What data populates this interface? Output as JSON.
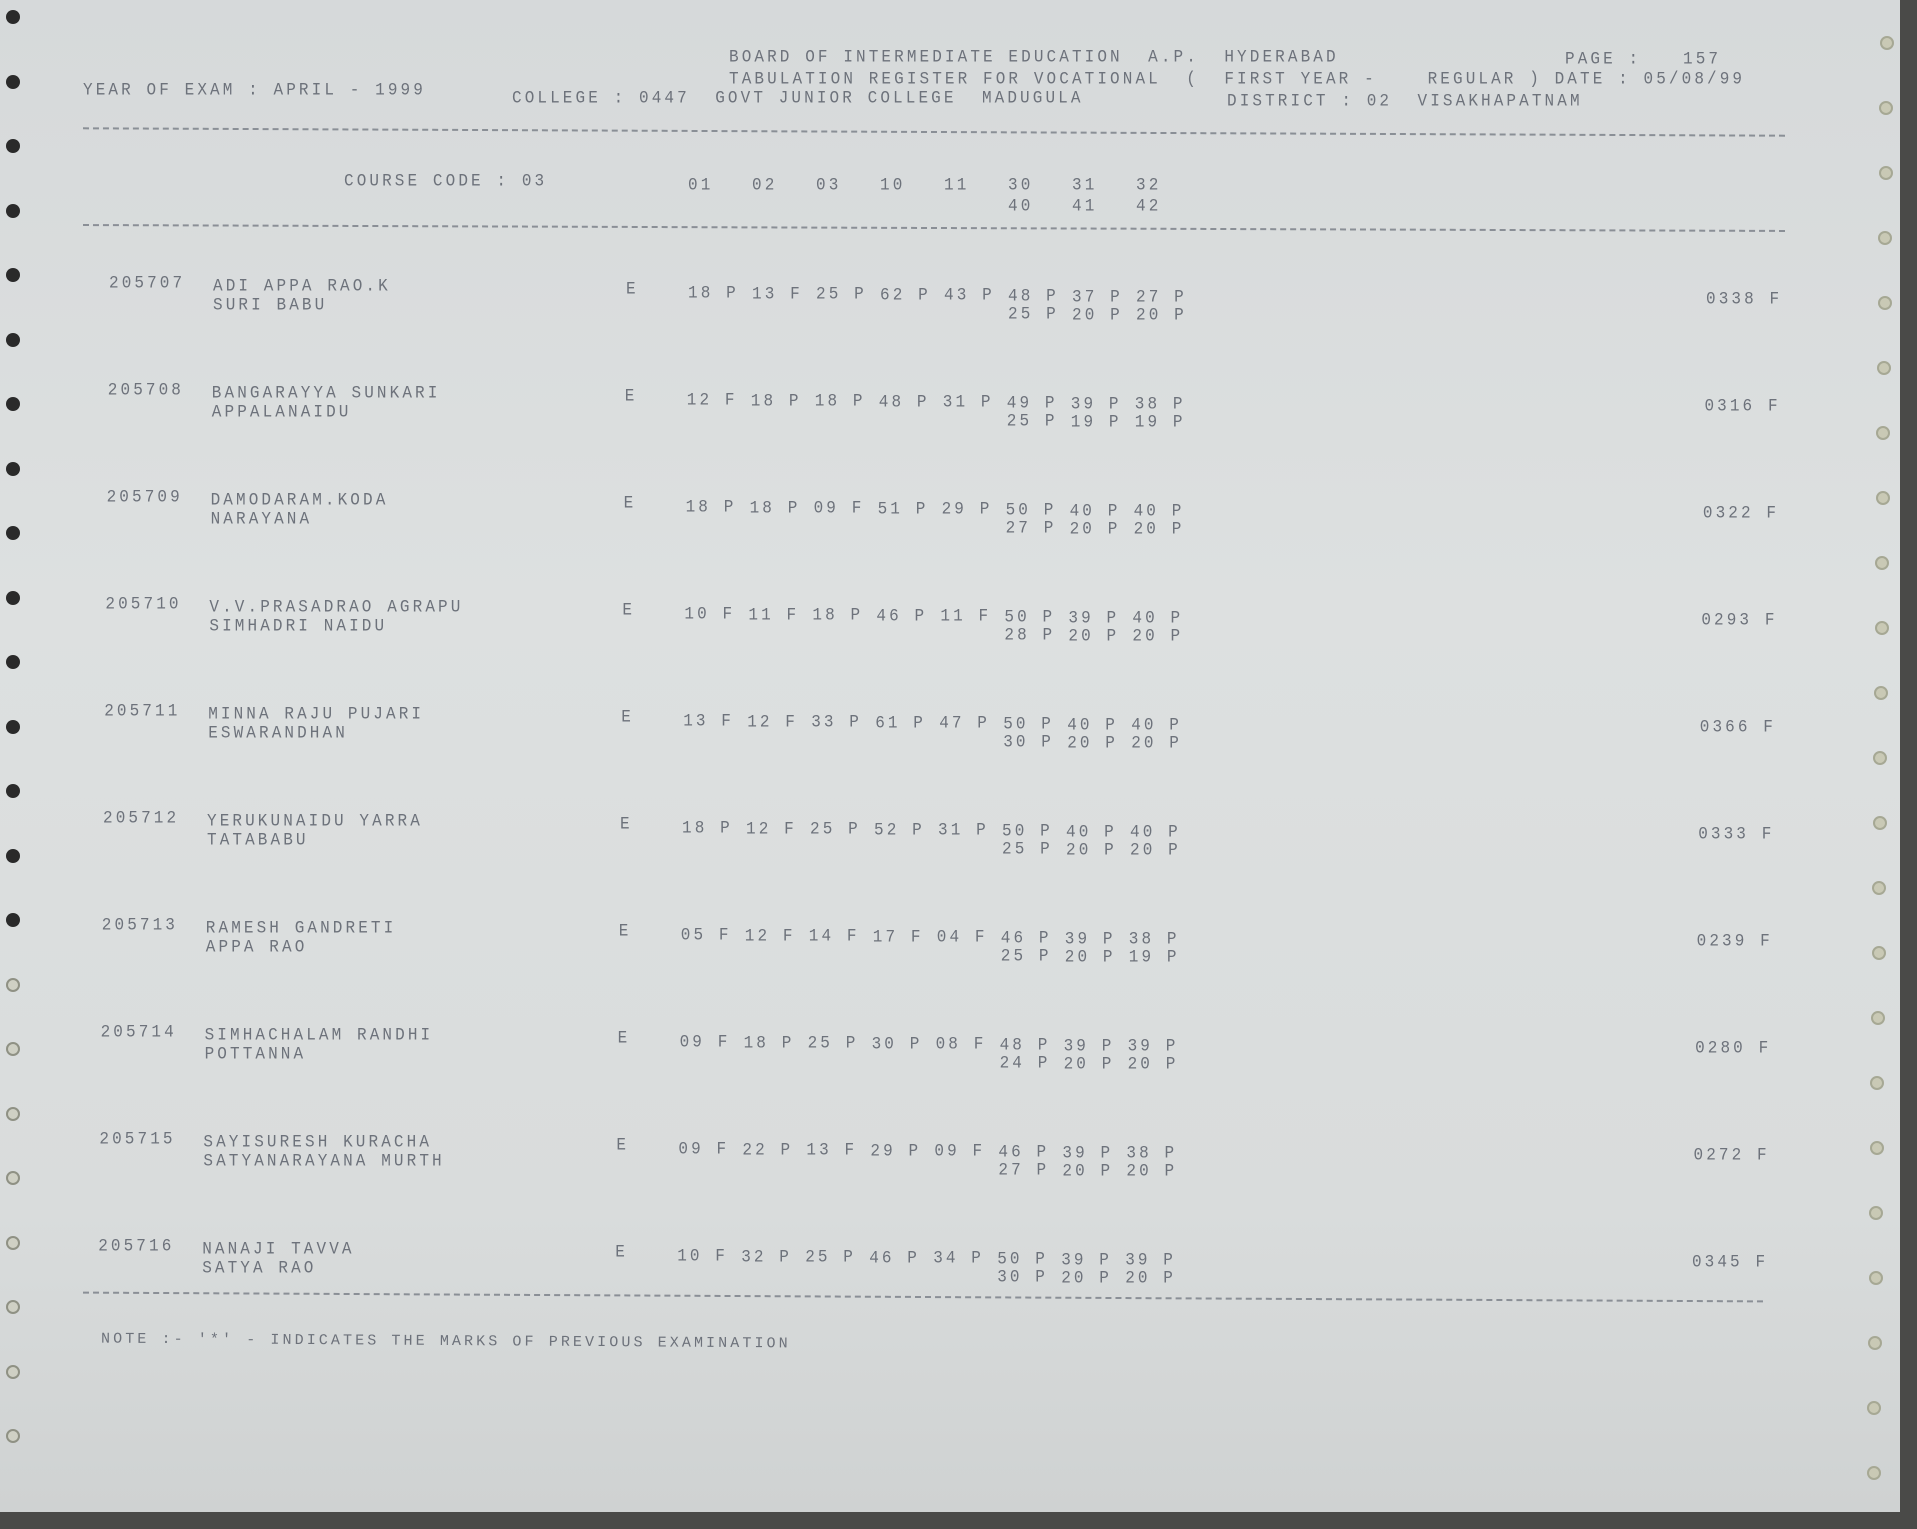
{
  "header": {
    "line1": "BOARD OF INTERMEDIATE EDUCATION  A.P.  HYDERABAD",
    "page_label": "PAGE :",
    "page_number": "157",
    "line2": "TABULATION REGISTER FOR VOCATIONAL  (  FIRST YEAR -    REGULAR ) DATE : 05/08/99",
    "year_of_exam": "YEAR OF EXAM : APRIL - 1999",
    "college": "COLLEGE : 0447  GOVT JUNIOR COLLEGE  MADUGULA",
    "district": "DISTRICT : 02  VISAKHAPATNAM"
  },
  "columns": {
    "course_code": "COURSE CODE : 03",
    "row1": [
      "01",
      "02",
      "03",
      "10",
      "11",
      "30",
      "31",
      "32"
    ],
    "row2": [
      "40",
      "41",
      "42"
    ]
  },
  "students": [
    {
      "roll": "205707",
      "name1": "ADI APPA RAO.K",
      "name2": "SURI BABU",
      "medium": "E",
      "marks1": [
        "18 P",
        "13 F",
        "25 P",
        "62 P",
        "43 P",
        "48 P",
        "37 P",
        "27 P"
      ],
      "marks2": [
        "25 P",
        "20 P",
        "20 P"
      ],
      "total": "0338 F"
    },
    {
      "roll": "205708",
      "name1": "BANGARAYYA SUNKARI",
      "name2": "APPALANAIDU",
      "medium": "E",
      "marks1": [
        "12 F",
        "18 P",
        "18 P",
        "48 P",
        "31 P",
        "49 P",
        "39 P",
        "38 P"
      ],
      "marks2": [
        "25 P",
        "19 P",
        "19 P"
      ],
      "total": "0316 F"
    },
    {
      "roll": "205709",
      "name1": "DAMODARAM.KODA",
      "name2": "NARAYANA",
      "medium": "E",
      "marks1": [
        "18 P",
        "18 P",
        "09 F",
        "51 P",
        "29 P",
        "50 P",
        "40 P",
        "40 P"
      ],
      "marks2": [
        "27 P",
        "20 P",
        "20 P"
      ],
      "total": "0322 F"
    },
    {
      "roll": "205710",
      "name1": "V.V.PRASADRAO AGRAPU",
      "name2": "SIMHADRI NAIDU",
      "medium": "E",
      "marks1": [
        "10 F",
        "11 F",
        "18 P",
        "46 P",
        "11 F",
        "50 P",
        "39 P",
        "40 P"
      ],
      "marks2": [
        "28 P",
        "20 P",
        "20 P"
      ],
      "total": "0293 F"
    },
    {
      "roll": "205711",
      "name1": "MINNA RAJU PUJARI",
      "name2": "ESWARANDHAN",
      "medium": "E",
      "marks1": [
        "13 F",
        "12 F",
        "33 P",
        "61 P",
        "47 P",
        "50 P",
        "40 P",
        "40 P"
      ],
      "marks2": [
        "30 P",
        "20 P",
        "20 P"
      ],
      "total": "0366 F"
    },
    {
      "roll": "205712",
      "name1": "YERUKUNAIDU YARRA",
      "name2": "TATABABU",
      "medium": "E",
      "marks1": [
        "18 P",
        "12 F",
        "25 P",
        "52 P",
        "31 P",
        "50 P",
        "40 P",
        "40 P"
      ],
      "marks2": [
        "25 P",
        "20 P",
        "20 P"
      ],
      "total": "0333 F"
    },
    {
      "roll": "205713",
      "name1": "RAMESH GANDRETI",
      "name2": "APPA RAO",
      "medium": "E",
      "marks1": [
        "05 F",
        "12 F",
        "14 F",
        "17 F",
        "04 F",
        "46 P",
        "39 P",
        "38 P"
      ],
      "marks2": [
        "25 P",
        "20 P",
        "19 P"
      ],
      "total": "0239 F"
    },
    {
      "roll": "205714",
      "name1": "SIMHACHALAM RANDHI",
      "name2": "POTTANNA",
      "medium": "E",
      "marks1": [
        "09 F",
        "18 P",
        "25 P",
        "30 P",
        "08 F",
        "48 P",
        "39 P",
        "39 P"
      ],
      "marks2": [
        "24 P",
        "20 P",
        "20 P"
      ],
      "total": "0280 F"
    },
    {
      "roll": "205715",
      "name1": "SAYISURESH KURACHA",
      "name2": "SATYANARAYANA MURTH",
      "medium": "E",
      "marks1": [
        "09 F",
        "22 P",
        "13 F",
        "29 P",
        "09 F",
        "46 P",
        "39 P",
        "38 P"
      ],
      "marks2": [
        "27 P",
        "20 P",
        "20 P"
      ],
      "total": "0272 F"
    },
    {
      "roll": "205716",
      "name1": "NANAJI TAVVA",
      "name2": "SATYA RAO",
      "medium": "E",
      "marks1": [
        "10 F",
        "32 P",
        "25 P",
        "46 P",
        "34 P",
        "50 P",
        "39 P",
        "39 P"
      ],
      "marks2": [
        "30 P",
        "20 P",
        "20 P"
      ],
      "total": "0345 F"
    }
  ],
  "note": "NOTE :- '*' - INDICATES THE MARKS OF PREVIOUS EXAMINATION",
  "colors": {
    "ink": "#6d727b",
    "paper": "#d9dcdc"
  }
}
